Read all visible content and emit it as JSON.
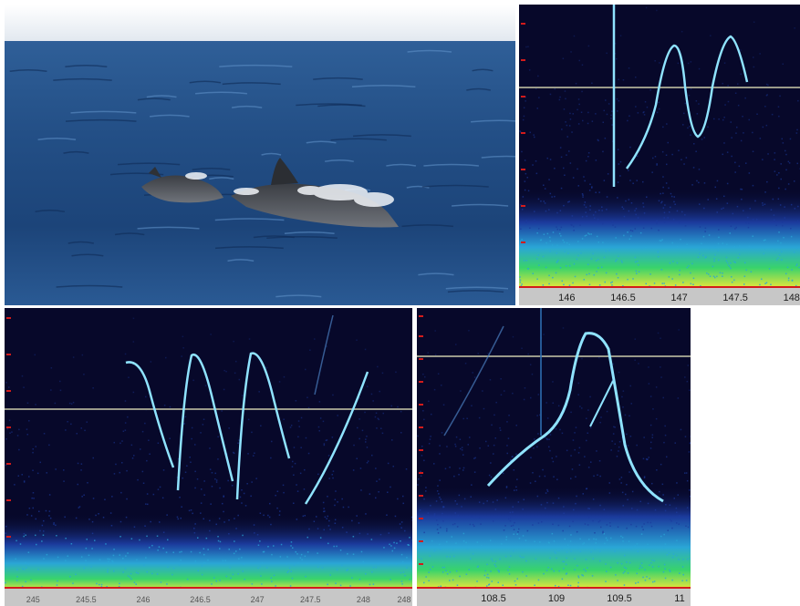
{
  "photo": {
    "subject": "two dolphins surfacing in the sea",
    "colors": {
      "sky": "#e9eef3",
      "sea_light": "#3d6fa8",
      "sea_dark": "#0f2c57",
      "dolphin": "#4a4d52",
      "spray": "#f1f4f8"
    }
  },
  "spectrograms": [
    {
      "id": "spec-a",
      "x_ticks": [
        "146",
        "146.5",
        "147",
        "147.5",
        "148"
      ]
    },
    {
      "id": "spec-b",
      "x_ticks": [
        "245",
        "245.5",
        "246",
        "246.5",
        "247",
        "247.5",
        "248",
        "248"
      ]
    },
    {
      "id": "spec-c",
      "x_ticks": [
        "108.5",
        "109",
        "109.5",
        "11"
      ]
    }
  ],
  "colors": {
    "spec_background": "#07082a",
    "whistle_contour": "#8fe3ff",
    "reference_line": "#9a9a8a",
    "low_band_yellow": "#e6e63a",
    "low_band_green": "#39d36b",
    "low_band_cyan": "#2aa6d6",
    "axis_red": "#d21b1b"
  }
}
